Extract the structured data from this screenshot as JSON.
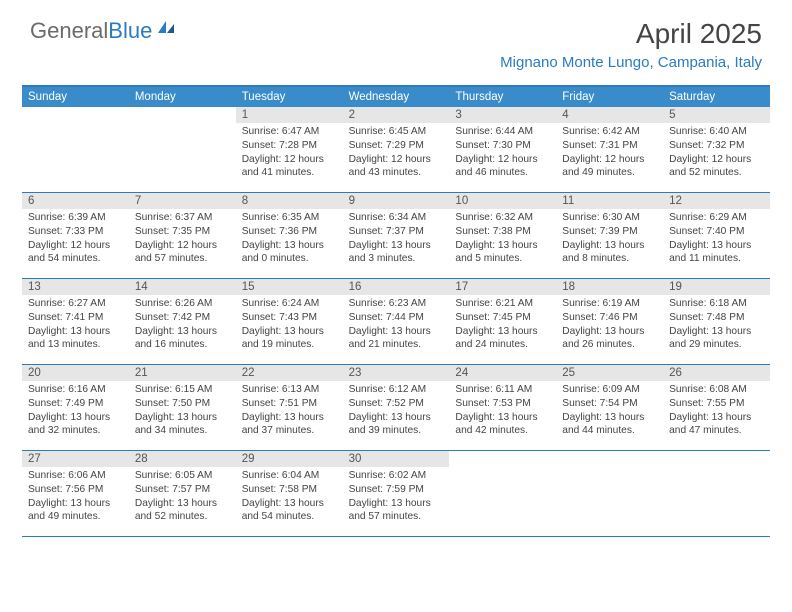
{
  "brand": {
    "general": "General",
    "blue": "Blue"
  },
  "title": "April 2025",
  "location": "Mignano Monte Lungo, Campania, Italy",
  "header_bg": "#3a8bc9",
  "header_border": "#2b7bbf",
  "weekdays": [
    "Sunday",
    "Monday",
    "Tuesday",
    "Wednesday",
    "Thursday",
    "Friday",
    "Saturday"
  ],
  "grid": {
    "cols": 7,
    "leading_blank": 2
  },
  "days": [
    {
      "n": "1",
      "sunrise": "6:47 AM",
      "sunset": "7:28 PM",
      "dl": "12 hours and 41 minutes."
    },
    {
      "n": "2",
      "sunrise": "6:45 AM",
      "sunset": "7:29 PM",
      "dl": "12 hours and 43 minutes."
    },
    {
      "n": "3",
      "sunrise": "6:44 AM",
      "sunset": "7:30 PM",
      "dl": "12 hours and 46 minutes."
    },
    {
      "n": "4",
      "sunrise": "6:42 AM",
      "sunset": "7:31 PM",
      "dl": "12 hours and 49 minutes."
    },
    {
      "n": "5",
      "sunrise": "6:40 AM",
      "sunset": "7:32 PM",
      "dl": "12 hours and 52 minutes."
    },
    {
      "n": "6",
      "sunrise": "6:39 AM",
      "sunset": "7:33 PM",
      "dl": "12 hours and 54 minutes."
    },
    {
      "n": "7",
      "sunrise": "6:37 AM",
      "sunset": "7:35 PM",
      "dl": "12 hours and 57 minutes."
    },
    {
      "n": "8",
      "sunrise": "6:35 AM",
      "sunset": "7:36 PM",
      "dl": "13 hours and 0 minutes."
    },
    {
      "n": "9",
      "sunrise": "6:34 AM",
      "sunset": "7:37 PM",
      "dl": "13 hours and 3 minutes."
    },
    {
      "n": "10",
      "sunrise": "6:32 AM",
      "sunset": "7:38 PM",
      "dl": "13 hours and 5 minutes."
    },
    {
      "n": "11",
      "sunrise": "6:30 AM",
      "sunset": "7:39 PM",
      "dl": "13 hours and 8 minutes."
    },
    {
      "n": "12",
      "sunrise": "6:29 AM",
      "sunset": "7:40 PM",
      "dl": "13 hours and 11 minutes."
    },
    {
      "n": "13",
      "sunrise": "6:27 AM",
      "sunset": "7:41 PM",
      "dl": "13 hours and 13 minutes."
    },
    {
      "n": "14",
      "sunrise": "6:26 AM",
      "sunset": "7:42 PM",
      "dl": "13 hours and 16 minutes."
    },
    {
      "n": "15",
      "sunrise": "6:24 AM",
      "sunset": "7:43 PM",
      "dl": "13 hours and 19 minutes."
    },
    {
      "n": "16",
      "sunrise": "6:23 AM",
      "sunset": "7:44 PM",
      "dl": "13 hours and 21 minutes."
    },
    {
      "n": "17",
      "sunrise": "6:21 AM",
      "sunset": "7:45 PM",
      "dl": "13 hours and 24 minutes."
    },
    {
      "n": "18",
      "sunrise": "6:19 AM",
      "sunset": "7:46 PM",
      "dl": "13 hours and 26 minutes."
    },
    {
      "n": "19",
      "sunrise": "6:18 AM",
      "sunset": "7:48 PM",
      "dl": "13 hours and 29 minutes."
    },
    {
      "n": "20",
      "sunrise": "6:16 AM",
      "sunset": "7:49 PM",
      "dl": "13 hours and 32 minutes."
    },
    {
      "n": "21",
      "sunrise": "6:15 AM",
      "sunset": "7:50 PM",
      "dl": "13 hours and 34 minutes."
    },
    {
      "n": "22",
      "sunrise": "6:13 AM",
      "sunset": "7:51 PM",
      "dl": "13 hours and 37 minutes."
    },
    {
      "n": "23",
      "sunrise": "6:12 AM",
      "sunset": "7:52 PM",
      "dl": "13 hours and 39 minutes."
    },
    {
      "n": "24",
      "sunrise": "6:11 AM",
      "sunset": "7:53 PM",
      "dl": "13 hours and 42 minutes."
    },
    {
      "n": "25",
      "sunrise": "6:09 AM",
      "sunset": "7:54 PM",
      "dl": "13 hours and 44 minutes."
    },
    {
      "n": "26",
      "sunrise": "6:08 AM",
      "sunset": "7:55 PM",
      "dl": "13 hours and 47 minutes."
    },
    {
      "n": "27",
      "sunrise": "6:06 AM",
      "sunset": "7:56 PM",
      "dl": "13 hours and 49 minutes."
    },
    {
      "n": "28",
      "sunrise": "6:05 AM",
      "sunset": "7:57 PM",
      "dl": "13 hours and 52 minutes."
    },
    {
      "n": "29",
      "sunrise": "6:04 AM",
      "sunset": "7:58 PM",
      "dl": "13 hours and 54 minutes."
    },
    {
      "n": "30",
      "sunrise": "6:02 AM",
      "sunset": "7:59 PM",
      "dl": "13 hours and 57 minutes."
    }
  ],
  "labels": {
    "sunrise": "Sunrise:",
    "sunset": "Sunset:",
    "daylight": "Daylight:"
  }
}
